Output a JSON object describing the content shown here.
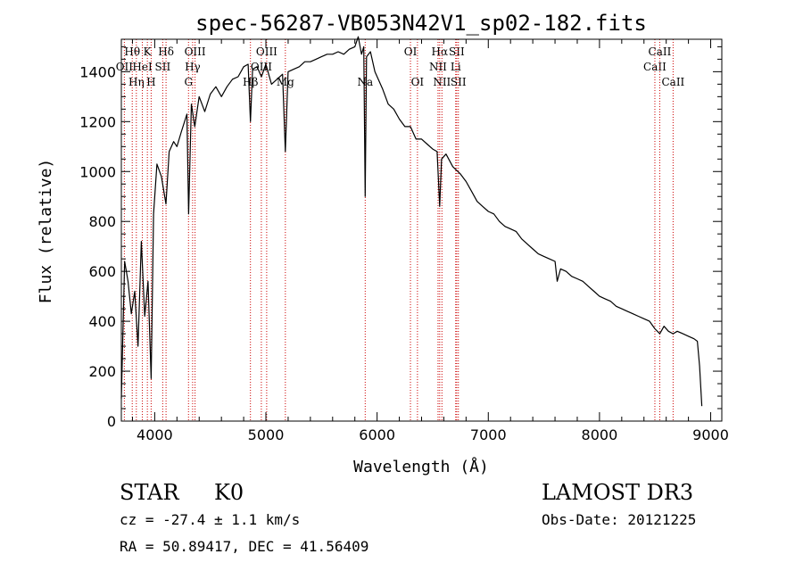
{
  "chart_data": {
    "type": "line",
    "title": "spec-56287-VB053N42V1_sp02-182.fits",
    "xlabel": "Wavelength (Å)",
    "ylabel": "Flux (relative)",
    "xlim": [
      3700,
      9100
    ],
    "ylim": [
      0,
      1530
    ],
    "xticks": [
      4000,
      5000,
      6000,
      7000,
      8000,
      9000
    ],
    "yticks": [
      0,
      200,
      400,
      600,
      800,
      1000,
      1200,
      1400
    ],
    "grid": false,
    "series": [
      {
        "name": "flux",
        "x": [
          3700,
          3730,
          3760,
          3790,
          3820,
          3850,
          3880,
          3910,
          3940,
          3968,
          3990,
          4020,
          4060,
          4101,
          4130,
          4170,
          4200,
          4240,
          4290,
          4305,
          4330,
          4360,
          4400,
          4450,
          4500,
          4550,
          4600,
          4650,
          4700,
          4750,
          4800,
          4840,
          4861,
          4880,
          4920,
          4960,
          5000,
          5050,
          5100,
          5150,
          5175,
          5200,
          5250,
          5300,
          5350,
          5400,
          5450,
          5500,
          5550,
          5600,
          5650,
          5700,
          5750,
          5800,
          5830,
          5860,
          5880,
          5893,
          5905,
          5940,
          5980,
          6050,
          6100,
          6150,
          6200,
          6250,
          6300,
          6350,
          6400,
          6450,
          6500,
          6540,
          6563,
          6580,
          6620,
          6680,
          6750,
          6800,
          6850,
          6900,
          6950,
          7000,
          7050,
          7100,
          7150,
          7200,
          7250,
          7300,
          7350,
          7400,
          7450,
          7500,
          7550,
          7600,
          7620,
          7650,
          7700,
          7750,
          7800,
          7850,
          7900,
          7950,
          8000,
          8050,
          8100,
          8150,
          8200,
          8250,
          8300,
          8350,
          8400,
          8450,
          8498,
          8542,
          8580,
          8620,
          8662,
          8700,
          8750,
          8800,
          8850,
          8880,
          8900,
          8920
        ],
        "values": [
          90,
          640,
          560,
          430,
          520,
          300,
          720,
          420,
          560,
          170,
          830,
          1030,
          980,
          870,
          1080,
          1120,
          1100,
          1160,
          1230,
          830,
          1270,
          1180,
          1300,
          1240,
          1310,
          1340,
          1300,
          1340,
          1370,
          1380,
          1420,
          1430,
          1200,
          1410,
          1420,
          1380,
          1430,
          1350,
          1370,
          1390,
          1080,
          1400,
          1410,
          1420,
          1440,
          1440,
          1450,
          1460,
          1470,
          1470,
          1480,
          1470,
          1490,
          1500,
          1540,
          1470,
          1500,
          900,
          1460,
          1480,
          1400,
          1330,
          1270,
          1250,
          1210,
          1180,
          1180,
          1130,
          1130,
          1110,
          1090,
          1080,
          860,
          1050,
          1070,
          1020,
          990,
          960,
          920,
          880,
          860,
          840,
          830,
          800,
          780,
          770,
          760,
          730,
          710,
          690,
          670,
          660,
          650,
          640,
          560,
          610,
          600,
          580,
          570,
          560,
          540,
          520,
          500,
          490,
          480,
          460,
          450,
          440,
          430,
          420,
          410,
          400,
          370,
          350,
          380,
          360,
          350,
          360,
          350,
          340,
          330,
          320,
          220,
          60
        ]
      }
    ],
    "lines": [
      {
        "wave": 3727,
        "label": "OII",
        "row": 2
      },
      {
        "wave": 3798,
        "label": "Hθ",
        "row": 1
      },
      {
        "wave": 3835,
        "label": "Hη",
        "row": 3
      },
      {
        "wave": 3889,
        "label": "HeI",
        "row": 2
      },
      {
        "wave": 3934,
        "label": "K",
        "row": 1
      },
      {
        "wave": 3968,
        "label": "H",
        "row": 3
      },
      {
        "wave": 4072,
        "label": "SII",
        "row": 2
      },
      {
        "wave": 4102,
        "label": "Hδ",
        "row": 1
      },
      {
        "wave": 4304,
        "label": "G",
        "row": 3
      },
      {
        "wave": 4341,
        "label": "Hγ",
        "row": 2
      },
      {
        "wave": 4363,
        "label": "OIII",
        "row": 1
      },
      {
        "wave": 4861,
        "label": "Hβ",
        "row": 3
      },
      {
        "wave": 4959,
        "label": "OIII",
        "row": 2
      },
      {
        "wave": 5007,
        "label": "OIII",
        "row": 1
      },
      {
        "wave": 5175,
        "label": "Mg",
        "row": 3
      },
      {
        "wave": 5893,
        "label": "Na",
        "row": 3
      },
      {
        "wave": 6300,
        "label": "OI",
        "row": 1
      },
      {
        "wave": 6363,
        "label": "OI",
        "row": 3
      },
      {
        "wave": 6548,
        "label": "NII",
        "row": 2
      },
      {
        "wave": 6563,
        "label": "Hα",
        "row": 1
      },
      {
        "wave": 6583,
        "label": "NII",
        "row": 3
      },
      {
        "wave": 6707,
        "label": "Li",
        "row": 2
      },
      {
        "wave": 6716,
        "label": "SII",
        "row": 1
      },
      {
        "wave": 6731,
        "label": "SII",
        "row": 3
      },
      {
        "wave": 8498,
        "label": "CaII",
        "row": 2
      },
      {
        "wave": 8542,
        "label": "CaII",
        "row": 1
      },
      {
        "wave": 8662,
        "label": "CaII",
        "row": 3
      }
    ]
  },
  "info": {
    "object_class": "STAR",
    "subclass": "K0",
    "survey": "LAMOST DR3",
    "redshift": "cz = -27.4 ± 1.1 km/s",
    "obs_date": "Obs-Date: 20121225",
    "coords": "RA =  50.89417, DEC =  41.56409"
  }
}
